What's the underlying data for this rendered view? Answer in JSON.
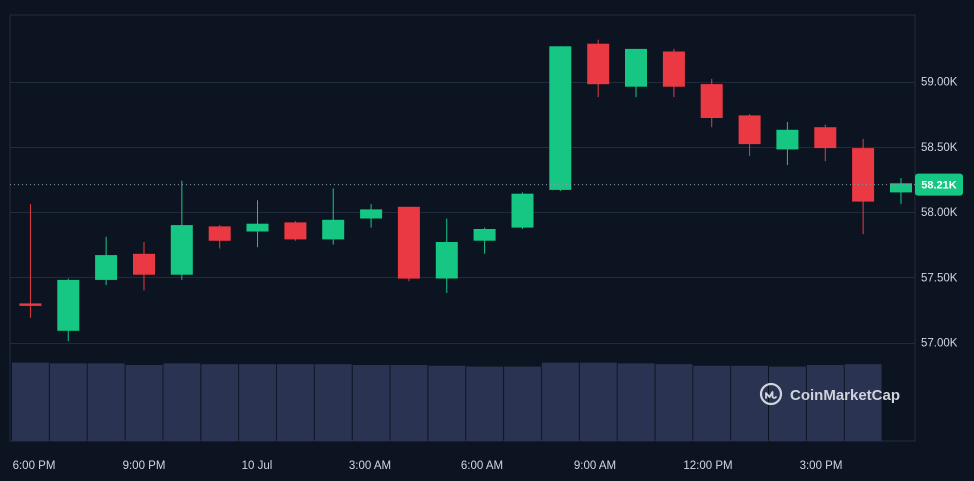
{
  "brand": {
    "name": "CoinMarketCap"
  },
  "colors": {
    "up": "#16c784",
    "down": "#ea3943",
    "volume": "#2a3352",
    "grid": "#222b3b",
    "background": "#0d1421"
  },
  "chart_data": {
    "type": "candlestick",
    "title": "",
    "xlabel": "",
    "ylabel": "",
    "ylim": [
      56000,
      59500
    ],
    "y_ticks": [
      57000,
      57500,
      58000,
      58500,
      59000
    ],
    "y_tick_labels": [
      "57.00K",
      "57.50K",
      "58.00K",
      "58.50K",
      "59.00K"
    ],
    "x_tick_labels": [
      "6:00 PM",
      "9:00 PM",
      "10 Jul",
      "3:00 AM",
      "6:00 AM",
      "9:00 AM",
      "12:00 PM",
      "3:00 PM"
    ],
    "current_price": 58210,
    "current_price_label": "58.21K",
    "grid": true,
    "candles": [
      {
        "open": 57300,
        "high": 58060,
        "low": 57190,
        "close": 57290
      },
      {
        "open": 57090,
        "high": 57490,
        "low": 57010,
        "close": 57480
      },
      {
        "open": 57480,
        "high": 57810,
        "low": 57440,
        "close": 57670
      },
      {
        "open": 57680,
        "high": 57770,
        "low": 57400,
        "close": 57520
      },
      {
        "open": 57520,
        "high": 58240,
        "low": 57480,
        "close": 57900
      },
      {
        "open": 57890,
        "high": 57900,
        "low": 57720,
        "close": 57780
      },
      {
        "open": 57850,
        "high": 58090,
        "low": 57730,
        "close": 57910
      },
      {
        "open": 57920,
        "high": 57930,
        "low": 57780,
        "close": 57790
      },
      {
        "open": 57790,
        "high": 58180,
        "low": 57750,
        "close": 57940
      },
      {
        "open": 57950,
        "high": 58060,
        "low": 57880,
        "close": 58020
      },
      {
        "open": 58040,
        "high": 58040,
        "low": 57470,
        "close": 57490
      },
      {
        "open": 57490,
        "high": 57950,
        "low": 57380,
        "close": 57770
      },
      {
        "open": 57780,
        "high": 57880,
        "low": 57680,
        "close": 57870
      },
      {
        "open": 57880,
        "high": 58150,
        "low": 57870,
        "close": 58140
      },
      {
        "open": 58170,
        "high": 59270,
        "low": 58160,
        "close": 59270
      },
      {
        "open": 59290,
        "high": 59320,
        "low": 58880,
        "close": 58980
      },
      {
        "open": 58960,
        "high": 59250,
        "low": 58880,
        "close": 59250
      },
      {
        "open": 59230,
        "high": 59250,
        "low": 58880,
        "close": 58960
      },
      {
        "open": 58980,
        "high": 59020,
        "low": 58650,
        "close": 58720
      },
      {
        "open": 58740,
        "high": 58750,
        "low": 58430,
        "close": 58520
      },
      {
        "open": 58480,
        "high": 58690,
        "low": 58360,
        "close": 58630
      },
      {
        "open": 58650,
        "high": 58670,
        "low": 58390,
        "close": 58490
      },
      {
        "open": 58490,
        "high": 58560,
        "low": 57830,
        "close": 58080
      },
      {
        "open": 58150,
        "high": 58260,
        "low": 58060,
        "close": 58220
      }
    ],
    "volume_relative": [
      0.98,
      0.97,
      0.97,
      0.95,
      0.97,
      0.96,
      0.96,
      0.96,
      0.96,
      0.95,
      0.95,
      0.94,
      0.93,
      0.93,
      0.98,
      0.98,
      0.97,
      0.96,
      0.94,
      0.94,
      0.93,
      0.95,
      0.96,
      0.0
    ]
  }
}
